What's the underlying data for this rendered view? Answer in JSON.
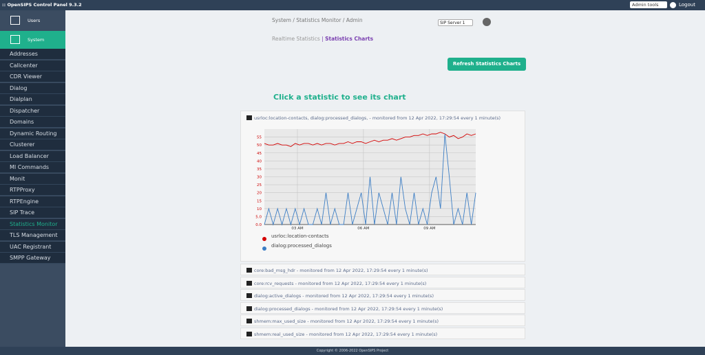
{
  "header": {
    "title": ":: OpenSIPS Control Panel 9.3.2",
    "admin_tools": "Admin tools",
    "logout": "Logout"
  },
  "sidebar": {
    "sections": [
      "Users",
      "System"
    ],
    "items": [
      "Addresses",
      "Callcenter",
      "CDR Viewer",
      "Dialog",
      "Dialplan",
      "Dispatcher",
      "Domains",
      "Dynamic Routing",
      "Clusterer",
      "Load Balancer",
      "MI Commands",
      "Monit",
      "RTPProxy",
      "RTPEngine",
      "SIP Trace",
      "Statistics Monitor",
      "TLS Management",
      "UAC Registrant",
      "SMPP Gateway"
    ]
  },
  "breadcrumb": "System / Statistics Monitor / Admin",
  "server_select": "SIP Server 1",
  "tabs": [
    "Realtime Statistics",
    "Statistics Charts"
  ],
  "refresh_button": "Refresh Statistics Charts",
  "heading": "Click a statistic to see its chart",
  "chart_data": {
    "type": "line",
    "title": "usrloc:location-contacts, dialog:processed_dialogs, - monitored from 12 Apr 2022, 17:29:54 every 1 minute(s)",
    "x": [
      1.5,
      1.7,
      1.9,
      2.1,
      2.3,
      2.5,
      2.7,
      2.9,
      3.1,
      3.3,
      3.5,
      3.7,
      3.9,
      4.1,
      4.3,
      4.5,
      4.7,
      4.9,
      5.1,
      5.3,
      5.5,
      5.7,
      5.9,
      6.1,
      6.3,
      6.5,
      6.7,
      6.9,
      7.1,
      7.3,
      7.5,
      7.7,
      7.9,
      8.1,
      8.3,
      8.5,
      8.7,
      8.9,
      9.1,
      9.3,
      9.5,
      9.7,
      9.9,
      10.1,
      10.3,
      10.5,
      10.7,
      10.9,
      11.1
    ],
    "series": [
      {
        "name": "usrloc:location-contacts",
        "color": "#d40000",
        "values": [
          51,
          50,
          50,
          51,
          50,
          50,
          49,
          51,
          50,
          51,
          51,
          50,
          51,
          50,
          51,
          51,
          50,
          51,
          51,
          52,
          51,
          52,
          52,
          51,
          52,
          53,
          52,
          53,
          53,
          54,
          53,
          54,
          55,
          55,
          56,
          56,
          57,
          56,
          57,
          57,
          58,
          57,
          55,
          56,
          54,
          55,
          57,
          56,
          57
        ]
      },
      {
        "name": "dialog:processed_dialogs",
        "color": "#3b7dc4",
        "values": [
          0,
          10,
          0,
          10,
          0,
          10,
          0,
          10,
          0,
          10,
          0,
          0,
          10,
          0,
          20,
          0,
          10,
          0,
          0,
          20,
          0,
          10,
          20,
          0,
          30,
          0,
          20,
          10,
          0,
          20,
          0,
          30,
          10,
          0,
          20,
          0,
          10,
          0,
          20,
          30,
          10,
          57,
          30,
          0,
          10,
          0,
          20,
          0,
          20
        ]
      }
    ],
    "xlim": [
      1.5,
      11.1
    ],
    "xticks": [
      {
        "value": 3,
        "label": "03 AM"
      },
      {
        "value": 6,
        "label": "06 AM"
      },
      {
        "value": 9,
        "label": "09 AM"
      }
    ],
    "ylim": [
      0,
      60
    ],
    "yticks": [
      {
        "value": 0,
        "label": "0.0"
      },
      {
        "value": 5,
        "label": "5.0"
      },
      10,
      15,
      20,
      25,
      30,
      35,
      40,
      45,
      50,
      55
    ],
    "grid": true
  },
  "stats_list": [
    "core:bad_msg_hdr - monitored from 12 Apr 2022, 17:29:54 every 1 minute(s)",
    "core:rcv_requests - monitored from 12 Apr 2022, 17:29:54 every 1 minute(s)",
    "dialog:active_dialogs - monitored from 12 Apr 2022, 17:29:54 every 1 minute(s)",
    "dialog:processed_dialogs - monitored from 12 Apr 2022, 17:29:54 every 1 minute(s)",
    "shmem:max_used_size - monitored from 12 Apr 2022, 17:29:54 every 1 minute(s)",
    "shmem:real_used_size - monitored from 12 Apr 2022, 17:29:54 every 1 minute(s)"
  ],
  "footer": "Copyright © 2006-2022 OpenSIPS Project"
}
